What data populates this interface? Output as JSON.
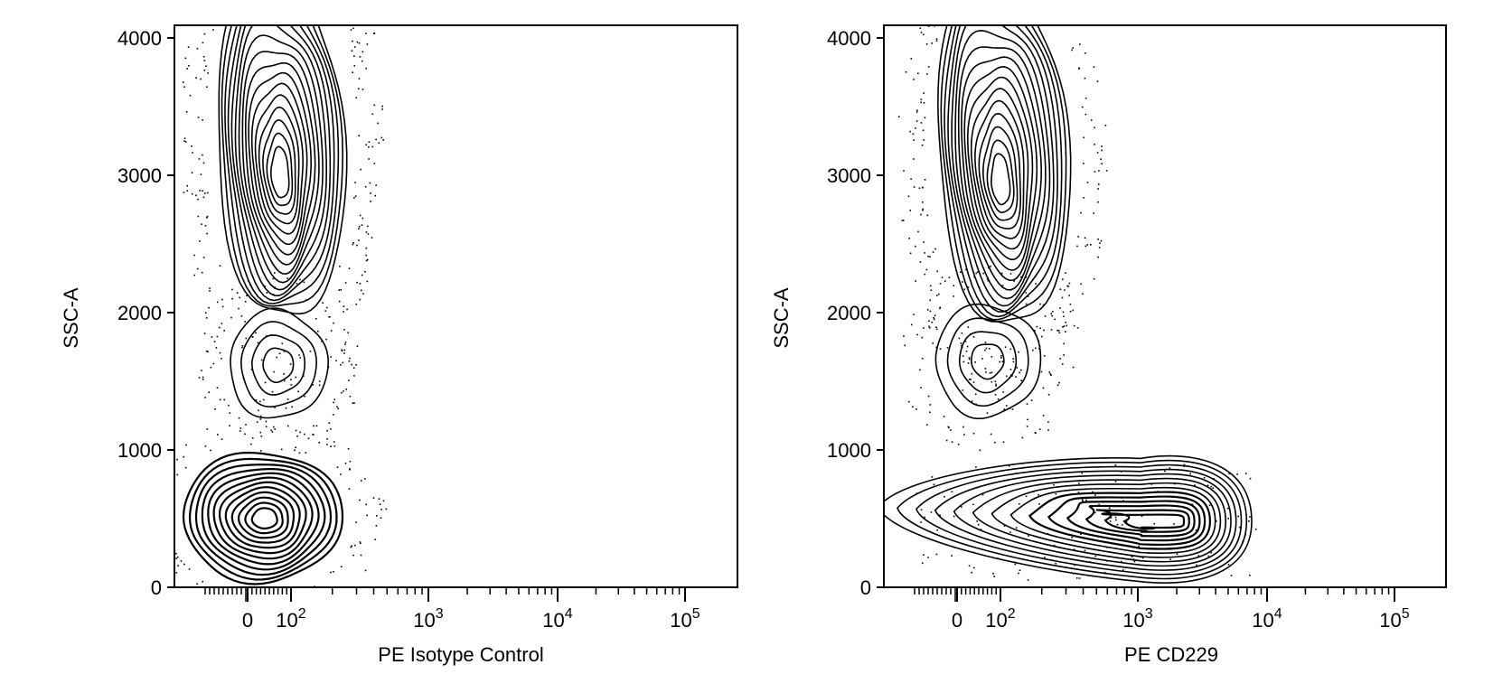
{
  "chart_data": [
    {
      "type": "contour",
      "xlabel": "PE Isotype Control",
      "ylabel": "SSC-A",
      "x_scale": "biexponential",
      "y_scale": "linear",
      "ylim": [
        0,
        4100
      ],
      "yticks": [
        0,
        1000,
        2000,
        3000,
        4000
      ],
      "ytick_labels": [
        "0",
        "1000",
        "2000",
        "3000",
        "4000"
      ],
      "xticks": [
        0,
        100,
        1000,
        10000,
        100000
      ],
      "xtick_labels": [
        {
          "base": "0",
          "exp": ""
        },
        {
          "base": "10",
          "exp": "2"
        },
        {
          "base": "10",
          "exp": "3"
        },
        {
          "base": "10",
          "exp": "4"
        },
        {
          "base": "10",
          "exp": "5"
        }
      ],
      "populations": [
        {
          "center_x": 75,
          "center_y": 3000,
          "levels": 16
        },
        {
          "center_x": 70,
          "center_y": 1620,
          "levels": 4
        },
        {
          "center_x": 40,
          "center_y": 500,
          "levels": 12
        }
      ]
    },
    {
      "type": "contour",
      "xlabel": "PE CD229",
      "ylabel": "SSC-A",
      "x_scale": "biexponential",
      "y_scale": "linear",
      "ylim": [
        0,
        4100
      ],
      "yticks": [
        0,
        1000,
        2000,
        3000,
        4000
      ],
      "ytick_labels": [
        "0",
        "1000",
        "2000",
        "3000",
        "4000"
      ],
      "xticks": [
        0,
        100,
        1000,
        10000,
        100000
      ],
      "xtick_labels": [
        {
          "base": "0",
          "exp": ""
        },
        {
          "base": "10",
          "exp": "2"
        },
        {
          "base": "10",
          "exp": "3"
        },
        {
          "base": "10",
          "exp": "4"
        },
        {
          "base": "10",
          "exp": "5"
        }
      ],
      "populations": [
        {
          "center_x": 100,
          "center_y": 2950,
          "levels": 16
        },
        {
          "center_x": 70,
          "center_y": 1650,
          "levels": 4
        },
        {
          "center_x": 2000,
          "center_y": 480,
          "levels": 14
        }
      ]
    }
  ]
}
